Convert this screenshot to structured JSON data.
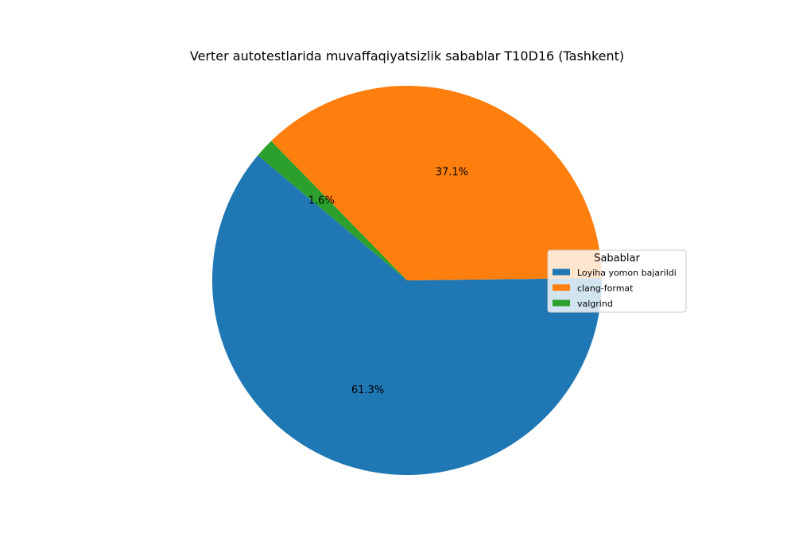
{
  "chart_data": {
    "type": "pie",
    "title": "Verter autotestlarida muvaffaqiyatsizlik sabablar T10D16 (Tashkent)",
    "slices": [
      {
        "label": "Loyiha yomon bajarildi",
        "value": 61.3,
        "pct_label": "61.3%",
        "color": "#1f77b4"
      },
      {
        "label": "clang-format",
        "value": 37.1,
        "pct_label": "37.1%",
        "color": "#ff7f0e"
      },
      {
        "label": "valgrind",
        "value": 1.6,
        "pct_label": "1.6%",
        "color": "#2ca02c"
      }
    ],
    "start_angle_deg": 140,
    "direction": "counterclockwise",
    "legend": {
      "title": "Sabablar",
      "placement": "center-right"
    }
  }
}
